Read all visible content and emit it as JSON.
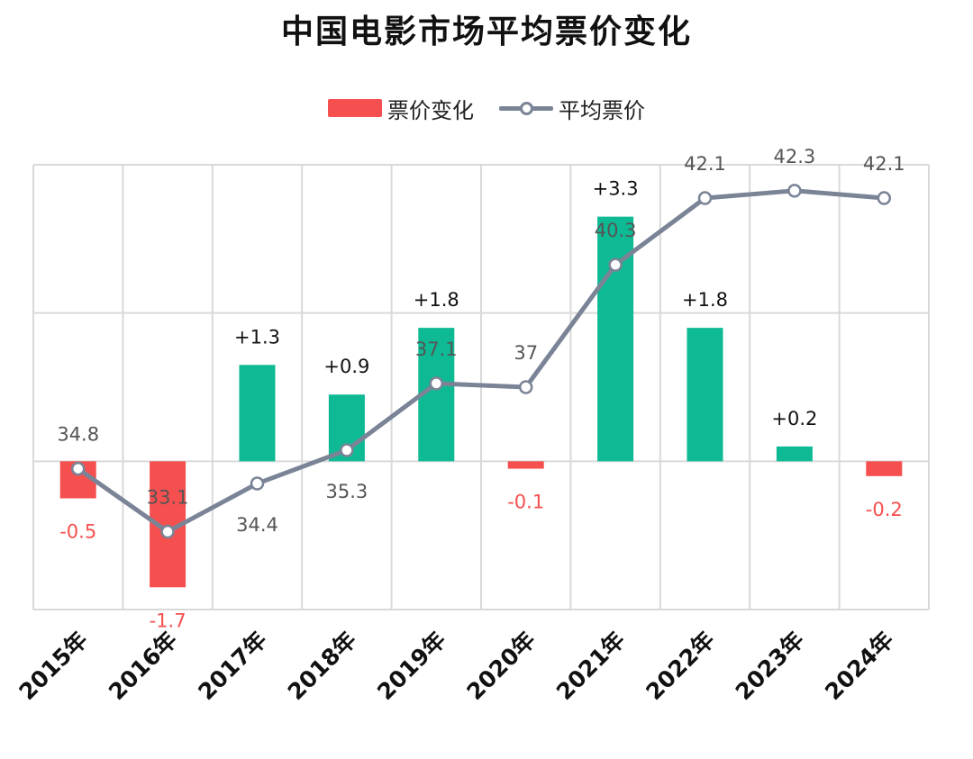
{
  "title": "中国电影市场平均票价变化",
  "legend": {
    "bar_label": "票价变化",
    "line_label": "平均票价"
  },
  "colors": {
    "positive": "#0dba94",
    "negative": "#f5504f",
    "line": "#7a8496",
    "grid": "#d9d9d9",
    "text": "#222222",
    "line_text": "#555555"
  },
  "chart_data": {
    "type": "bar+line",
    "title": "中国电影市场平均票价变化",
    "categories": [
      "2015年",
      "2016年",
      "2017年",
      "2018年",
      "2019年",
      "2020年",
      "2021年",
      "2022年",
      "2023年",
      "2024年"
    ],
    "series": [
      {
        "name": "票价变化",
        "type": "bar",
        "values": [
          -0.5,
          -1.7,
          1.3,
          0.9,
          1.8,
          -0.1,
          3.3,
          1.8,
          0.2,
          -0.2
        ],
        "labels": [
          "-0.5",
          "-1.7",
          "+1.3",
          "+0.9",
          "+1.8",
          "-0.1",
          "+3.3",
          "+1.8",
          "+0.2",
          "-0.2"
        ],
        "ylim": [
          -2,
          4
        ]
      },
      {
        "name": "平均票价",
        "type": "line",
        "values": [
          34.8,
          33.1,
          34.4,
          35.3,
          37.1,
          37,
          40.3,
          42.1,
          42.3,
          42.1
        ],
        "labels": [
          "34.8",
          "33.1",
          "34.4",
          "35.3",
          "37.1",
          "37",
          "40.3",
          "42.1",
          "42.3",
          "42.1"
        ],
        "ylim": [
          31,
          43
        ]
      }
    ],
    "xlabel": "",
    "ylabel": "",
    "grid": true,
    "legend_position": "top-center",
    "x_tick_rotation": -45
  }
}
